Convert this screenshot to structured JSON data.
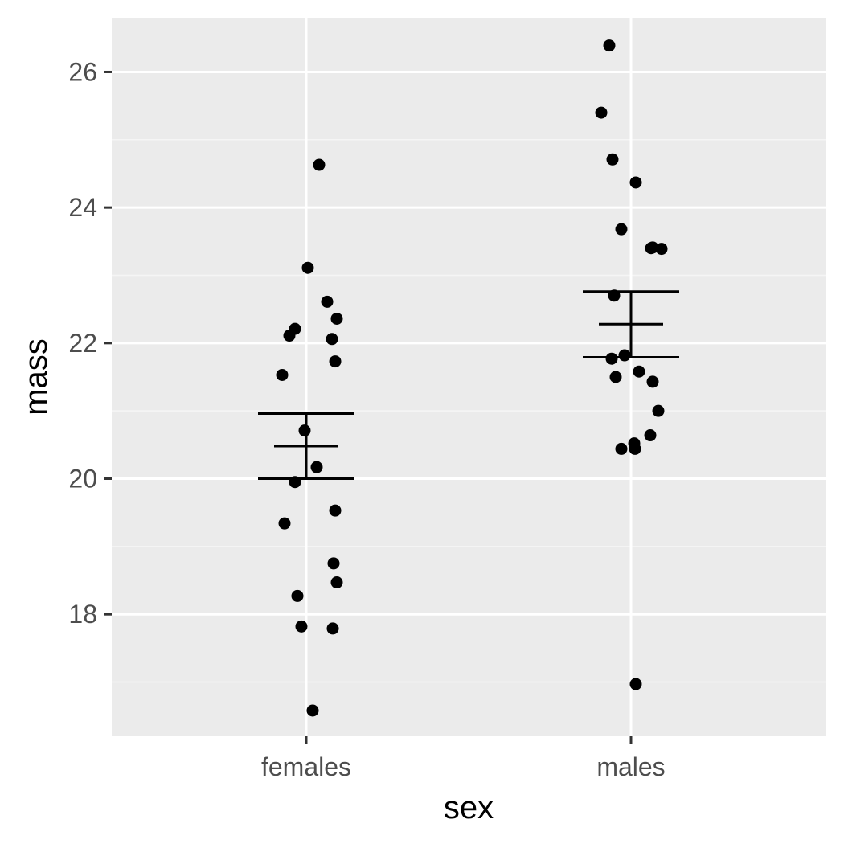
{
  "chart_data": {
    "type": "scatter",
    "xlabel": "sex",
    "ylabel": "mass",
    "categories": [
      "females",
      "males"
    ],
    "ylim": [
      16.2,
      26.8
    ],
    "yticks": [
      18,
      20,
      22,
      24,
      26
    ],
    "grid": true,
    "groups": [
      {
        "name": "females",
        "points": [
          24.63,
          23.11,
          22.61,
          22.36,
          22.21,
          22.11,
          22.06,
          21.73,
          21.53,
          20.71,
          20.17,
          19.95,
          19.53,
          19.34,
          18.75,
          18.47,
          18.27,
          17.82,
          17.79,
          16.58
        ],
        "mean": 20.48,
        "error_bar": [
          20.0,
          20.96
        ]
      },
      {
        "name": "males",
        "points": [
          26.39,
          25.4,
          24.71,
          24.37,
          23.68,
          23.41,
          23.4,
          23.39,
          22.7,
          21.82,
          21.77,
          21.58,
          21.5,
          21.43,
          21.0,
          20.64,
          20.52,
          20.44,
          20.44,
          16.97
        ],
        "mean": 22.28,
        "error_bar": [
          21.79,
          22.76
        ]
      }
    ]
  },
  "colors": {
    "panel_background": "#ebebeb",
    "grid_major": "#ffffff",
    "grid_minor": "#f5f5f5",
    "point": "#000000",
    "tick_label": "#4d4d4d"
  }
}
